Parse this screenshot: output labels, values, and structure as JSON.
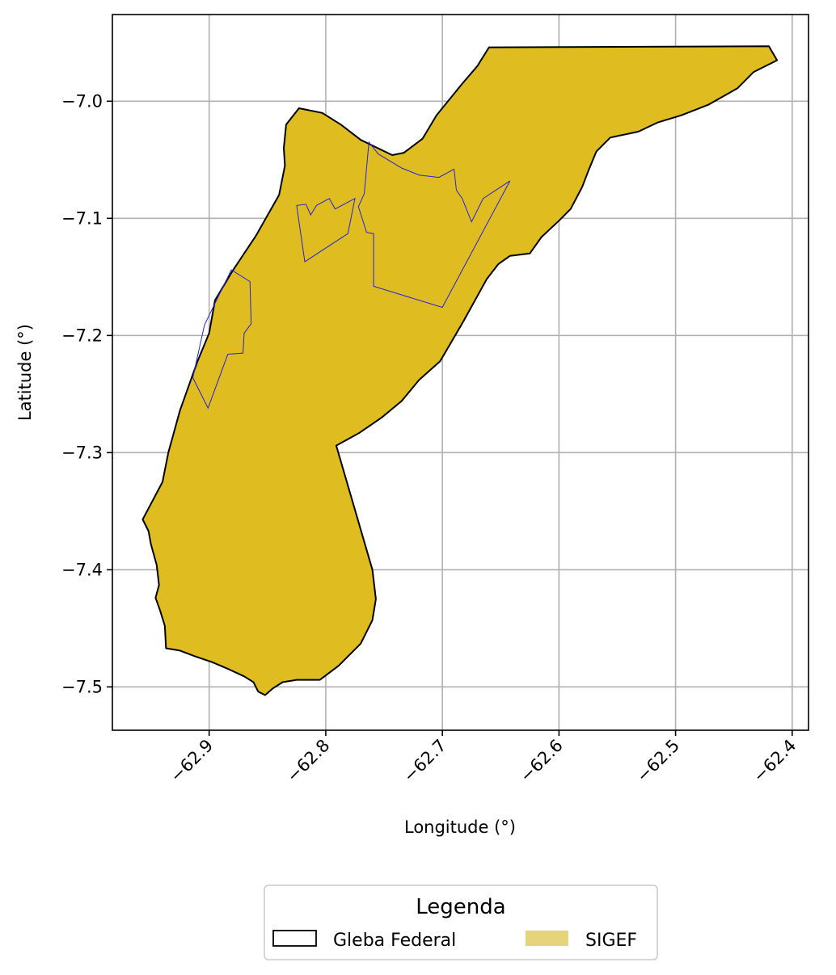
{
  "chart_data": {
    "type": "map",
    "xlabel": "Longitude (°)",
    "ylabel": "Latitude (°)",
    "xlim": [
      -62.983,
      -62.386
    ],
    "ylim": [
      -7.537,
      -6.926
    ],
    "xticks": [
      -62.9,
      -62.8,
      -62.7,
      -62.6,
      -62.5,
      -62.4
    ],
    "xtick_labels": [
      "−62.9",
      "−62.8",
      "−62.7",
      "−62.6",
      "−62.5",
      "−62.4"
    ],
    "yticks": [
      -7.0,
      -7.1,
      -7.2,
      -7.3,
      -7.4,
      -7.5
    ],
    "ytick_labels": [
      "−7.0",
      "−7.1",
      "−7.2",
      "−7.3",
      "−7.4",
      "−7.5"
    ],
    "grid": true,
    "legend": {
      "title": "Legenda",
      "placement": "bottom-center",
      "entries": [
        {
          "label": "Gleba Federal",
          "style": "outline",
          "color": "#000000"
        },
        {
          "label": "SIGEF",
          "style": "fill",
          "color": "#e6d47a"
        }
      ]
    },
    "colors": {
      "gleba_fill": "#dfbd21",
      "gleba_edge": "#000000",
      "sigef_edge": "#2222dd",
      "grid": "#b0b0b0"
    },
    "gleba_outline": [
      [
        -62.66,
        -6.954
      ],
      [
        -62.42,
        -6.953
      ],
      [
        -62.413,
        -6.965
      ],
      [
        -62.433,
        -6.975
      ],
      [
        -62.447,
        -6.989
      ],
      [
        -62.472,
        -7.003
      ],
      [
        -62.495,
        -7.012
      ],
      [
        -62.515,
        -7.018
      ],
      [
        -62.532,
        -7.026
      ],
      [
        -62.556,
        -7.031
      ],
      [
        -62.568,
        -7.043
      ],
      [
        -62.575,
        -7.06
      ],
      [
        -62.58,
        -7.073
      ],
      [
        -62.59,
        -7.092
      ],
      [
        -62.6,
        -7.102
      ],
      [
        -62.615,
        -7.116
      ],
      [
        -62.625,
        -7.13
      ],
      [
        -62.642,
        -7.132
      ],
      [
        -62.652,
        -7.139
      ],
      [
        -62.662,
        -7.152
      ],
      [
        -62.672,
        -7.17
      ],
      [
        -62.682,
        -7.188
      ],
      [
        -62.692,
        -7.205
      ],
      [
        -62.702,
        -7.222
      ],
      [
        -62.72,
        -7.238
      ],
      [
        -62.735,
        -7.256
      ],
      [
        -62.752,
        -7.27
      ],
      [
        -62.771,
        -7.283
      ],
      [
        -62.791,
        -7.294
      ],
      [
        -62.76,
        -7.4
      ],
      [
        -62.757,
        -7.425
      ],
      [
        -62.76,
        -7.443
      ],
      [
        -62.77,
        -7.463
      ],
      [
        -62.789,
        -7.482
      ],
      [
        -62.805,
        -7.494
      ],
      [
        -62.825,
        -7.494
      ],
      [
        -62.837,
        -7.496
      ],
      [
        -62.845,
        -7.501
      ],
      [
        -62.852,
        -7.507
      ],
      [
        -62.858,
        -7.504
      ],
      [
        -62.862,
        -7.496
      ],
      [
        -62.87,
        -7.491
      ],
      [
        -62.883,
        -7.485
      ],
      [
        -62.897,
        -7.479
      ],
      [
        -62.912,
        -7.474
      ],
      [
        -62.925,
        -7.469
      ],
      [
        -62.937,
        -7.467
      ],
      [
        -62.938,
        -7.448
      ],
      [
        -62.942,
        -7.435
      ],
      [
        -62.946,
        -7.424
      ],
      [
        -62.943,
        -7.413
      ],
      [
        -62.945,
        -7.396
      ],
      [
        -62.95,
        -7.378
      ],
      [
        -62.952,
        -7.367
      ],
      [
        -62.957,
        -7.357
      ],
      [
        -62.94,
        -7.325
      ],
      [
        -62.935,
        -7.3
      ],
      [
        -62.925,
        -7.264
      ],
      [
        -62.91,
        -7.222
      ],
      [
        -62.9,
        -7.198
      ],
      [
        -62.895,
        -7.17
      ],
      [
        -62.88,
        -7.145
      ],
      [
        -62.86,
        -7.115
      ],
      [
        -62.84,
        -7.08
      ],
      [
        -62.835,
        -7.055
      ],
      [
        -62.836,
        -7.04
      ],
      [
        -62.834,
        -7.02
      ],
      [
        -62.823,
        -7.006
      ],
      [
        -62.803,
        -7.01
      ],
      [
        -62.787,
        -7.02
      ],
      [
        -62.77,
        -7.033
      ],
      [
        -62.743,
        -7.046
      ],
      [
        -62.733,
        -7.044
      ],
      [
        -62.717,
        -7.032
      ],
      [
        -62.705,
        -7.012
      ],
      [
        -62.683,
        -6.985
      ],
      [
        -62.67,
        -6.97
      ]
    ],
    "sigef_parcels": [
      [
        [
          -62.881,
          -7.144
        ],
        [
          -62.865,
          -7.154
        ],
        [
          -62.864,
          -7.19
        ],
        [
          -62.87,
          -7.198
        ],
        [
          -62.871,
          -7.215
        ],
        [
          -62.884,
          -7.216
        ],
        [
          -62.901,
          -7.262
        ],
        [
          -62.914,
          -7.236
        ],
        [
          -62.904,
          -7.191
        ]
      ],
      [
        [
          -62.825,
          -7.089
        ],
        [
          -62.818,
          -7.137
        ],
        [
          -62.781,
          -7.113
        ],
        [
          -62.775,
          -7.083
        ],
        [
          -62.792,
          -7.092
        ],
        [
          -62.797,
          -7.083
        ],
        [
          -62.808,
          -7.089
        ],
        [
          -62.813,
          -7.097
        ],
        [
          -62.817,
          -7.088
        ]
      ],
      [
        [
          -62.763,
          -7.035
        ],
        [
          -62.767,
          -7.079
        ],
        [
          -62.772,
          -7.09
        ],
        [
          -62.765,
          -7.112
        ],
        [
          -62.759,
          -7.113
        ],
        [
          -62.759,
          -7.158
        ],
        [
          -62.7,
          -7.176
        ],
        [
          -62.642,
          -7.068
        ],
        [
          -62.665,
          -7.083
        ],
        [
          -62.675,
          -7.103
        ],
        [
          -62.683,
          -7.083
        ],
        [
          -62.688,
          -7.076
        ],
        [
          -62.69,
          -7.058
        ],
        [
          -62.703,
          -7.065
        ],
        [
          -62.72,
          -7.063
        ],
        [
          -62.735,
          -7.057
        ],
        [
          -62.755,
          -7.045
        ]
      ]
    ]
  }
}
